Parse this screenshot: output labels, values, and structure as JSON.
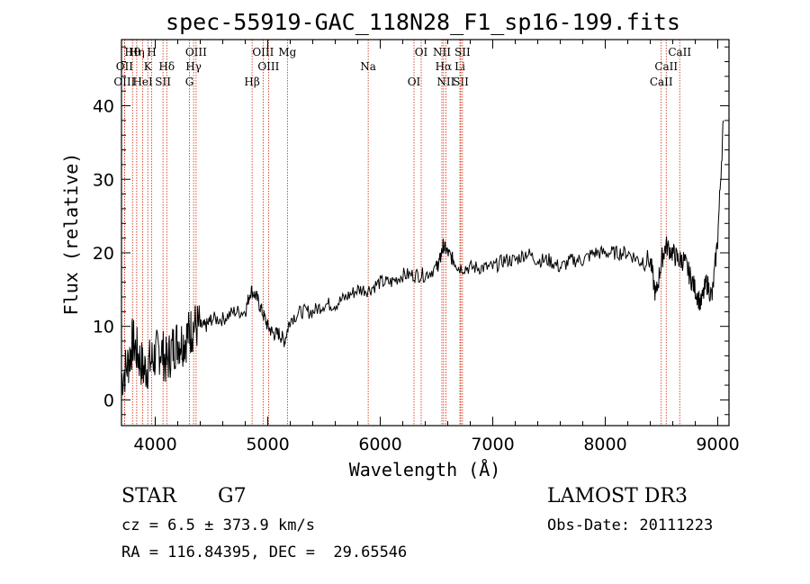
{
  "chart_data": {
    "type": "line",
    "title": "spec-55919-GAC_118N28_F1_sp16-199.fits",
    "xlabel": "Wavelength (Å)",
    "ylabel": "Flux (relative)",
    "xlim": [
      3700,
      9100
    ],
    "ylim": [
      -3.5,
      49
    ],
    "xticks": [
      4000,
      5000,
      6000,
      7000,
      8000,
      9000
    ],
    "yticks": [
      0,
      10,
      20,
      30,
      40
    ],
    "series": [
      {
        "name": "spectrum",
        "x": [
          3700,
          3760,
          3800,
          3850,
          3900,
          3950,
          4000,
          4050,
          4100,
          4150,
          4200,
          4250,
          4300,
          4340,
          4400,
          4450,
          4500,
          4600,
          4700,
          4800,
          4850,
          4900,
          4950,
          5000,
          5050,
          5100,
          5150,
          5200,
          5300,
          5400,
          5500,
          5600,
          5700,
          5800,
          5900,
          6000,
          6100,
          6200,
          6300,
          6400,
          6500,
          6530,
          6560,
          6600,
          6650,
          6700,
          6800,
          6900,
          7000,
          7100,
          7200,
          7300,
          7400,
          7500,
          7600,
          7700,
          7800,
          7900,
          8000,
          8100,
          8200,
          8300,
          8400,
          8450,
          8500,
          8540,
          8600,
          8650,
          8700,
          8750,
          8800,
          8850,
          8900,
          8950,
          9000,
          9050
        ],
        "y": [
          3,
          5,
          8,
          6,
          4,
          5,
          6,
          7,
          5,
          7,
          8,
          8,
          9,
          10,
          10,
          10,
          11,
          11,
          12,
          12,
          15,
          14,
          12,
          10,
          9,
          9,
          8,
          11,
          12,
          12,
          13,
          13,
          14,
          15,
          15,
          16,
          16,
          17,
          17,
          17,
          18,
          19,
          21,
          20,
          19,
          18,
          18,
          18,
          18,
          19,
          19,
          20,
          19,
          19,
          18,
          19,
          19,
          20,
          20,
          20,
          20,
          19,
          19,
          14,
          19,
          21,
          20,
          19,
          19,
          17,
          15,
          13,
          16,
          14,
          22,
          38
        ],
        "color": "#000000"
      }
    ],
    "emission_lines": [
      {
        "label": "Hθ",
        "x": 3798
      },
      {
        "label": "OII",
        "x": 3727
      },
      {
        "label": "OIII",
        "x": 3727
      },
      {
        "label": "Hη",
        "x": 3835
      },
      {
        "label": "K",
        "x": 3934
      },
      {
        "label": "HeI",
        "x": 3889
      },
      {
        "label": "H",
        "x": 3969
      },
      {
        "label": "Hδ",
        "x": 4102
      },
      {
        "label": "SII",
        "x": 4069
      },
      {
        "label": "OIII",
        "x": 4363
      },
      {
        "label": "Hγ",
        "x": 4341
      },
      {
        "label": "G",
        "x": 4304
      },
      {
        "label": "OIII",
        "x": 4959
      },
      {
        "label": "OIII",
        "x": 5007
      },
      {
        "label": "Hβ",
        "x": 4861
      },
      {
        "label": "Mg",
        "x": 5175
      },
      {
        "label": "Na",
        "x": 5893
      },
      {
        "label": "OI",
        "x": 6300
      },
      {
        "label": "OI",
        "x": 6364
      },
      {
        "label": "Hα",
        "x": 6563
      },
      {
        "label": "SII",
        "x": 6716
      },
      {
        "label": "NII",
        "x": 6548
      },
      {
        "label": "Li",
        "x": 6708
      },
      {
        "label": "NII",
        "x": 6583
      },
      {
        "label": "SII",
        "x": 6731
      },
      {
        "label": "CaII",
        "x": 8542
      },
      {
        "label": "CaII",
        "x": 8498
      },
      {
        "label": "CaII",
        "x": 8662
      }
    ],
    "line_color": "#cc2200",
    "grid": false
  },
  "info": {
    "class": "STAR",
    "subclass": "G7",
    "cz": "cz = 6.5 ± 373.9 km/s",
    "coords": "RA = 116.84395, DEC =  29.65546",
    "survey": "LAMOST DR3",
    "obsdate": "Obs-Date: 20111223"
  }
}
